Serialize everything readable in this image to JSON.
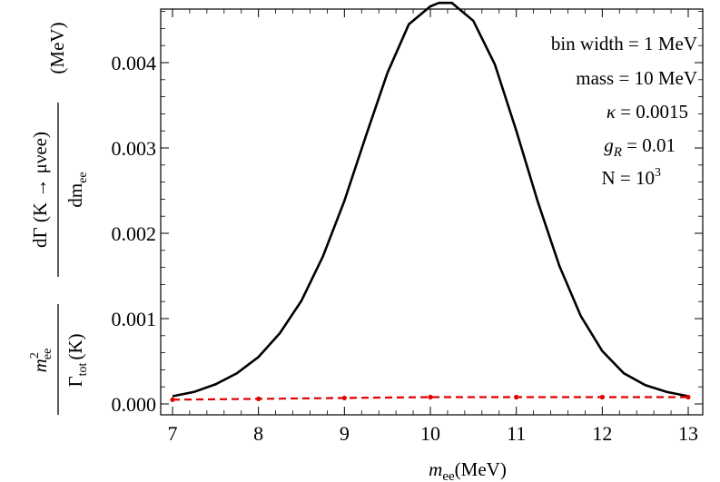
{
  "chart_data": {
    "type": "line",
    "title": "",
    "xlabel": {
      "main": "m",
      "sub": "ee",
      "unit": "(MeV)"
    },
    "ylabel": {
      "numerator": {
        "sym": "m",
        "sup": "2",
        "sub": "ee"
      },
      "denominator": {
        "main": "Γ",
        "sub": "tot",
        "arg": "(K)"
      },
      "derivative_top": "dΓ (K → μνee)",
      "derivative_bottom": {
        "main": "dm",
        "sub": "ee"
      },
      "unit": "(MeV)"
    },
    "xlim": [
      7,
      13
    ],
    "ylim": [
      0,
      0.0047
    ],
    "xticks": [
      7,
      8,
      9,
      10,
      11,
      12,
      13
    ],
    "xtick_labels": [
      "7",
      "8",
      "9",
      "10",
      "11",
      "12",
      "13"
    ],
    "yticks": [
      0,
      0.001,
      0.002,
      0.003,
      0.004
    ],
    "ytick_labels": [
      "0.000",
      "0.001",
      "0.002",
      "0.003",
      "0.004"
    ],
    "grid": false,
    "series": [
      {
        "style": "solid",
        "color": "#000000",
        "x": [
          7.0,
          7.25,
          7.5,
          7.75,
          8.0,
          8.25,
          8.5,
          8.75,
          9.0,
          9.25,
          9.5,
          9.75,
          10.0,
          10.1,
          10.2,
          10.25,
          10.5,
          10.75,
          11.0,
          11.25,
          11.5,
          11.75,
          12.0,
          12.25,
          12.5,
          12.75,
          13.0
        ],
        "y": [
          9e-05,
          0.00014,
          0.00023,
          0.00036,
          0.00055,
          0.00083,
          0.00121,
          0.00173,
          0.00238,
          0.00314,
          0.00388,
          0.00445,
          0.00466,
          0.0047,
          0.0047,
          0.0047,
          0.00449,
          0.00398,
          0.0032,
          0.00237,
          0.00162,
          0.00103,
          0.00062,
          0.00036,
          0.00022,
          0.00014,
          9e-05
        ]
      },
      {
        "style": "dashed",
        "color": "#e00000",
        "x": [
          7,
          8,
          9,
          10,
          11,
          12,
          13
        ],
        "y": [
          5e-05,
          6e-05,
          7e-05,
          8e-05,
          8e-05,
          8e-05,
          8e-05
        ],
        "marker_x": [
          7,
          8,
          9,
          10,
          11,
          12,
          13
        ],
        "marker_y": [
          5e-05,
          6e-05,
          7e-05,
          8e-05,
          8e-05,
          8e-05,
          8e-05
        ]
      }
    ],
    "annotations": {
      "bin_width": "bin width = 1 MeV",
      "mass": "mass = 10 MeV",
      "kappa_sym": "κ",
      "kappa_val": " = 0.0015",
      "gR_sym": "g",
      "gR_sub": "R",
      "gR_val": " = 0.01",
      "N_text": "N = 10",
      "N_exp": "3"
    }
  }
}
